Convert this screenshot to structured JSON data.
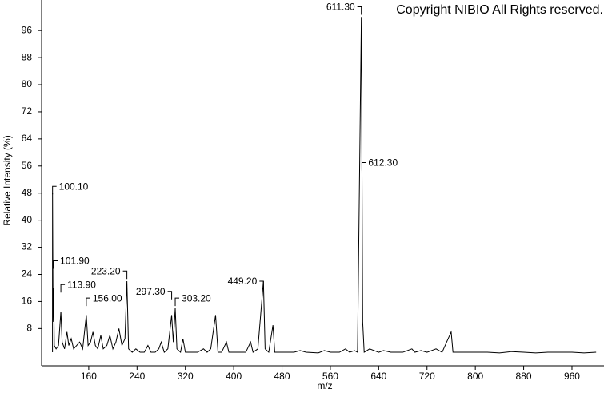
{
  "chart_data": {
    "type": "line",
    "title": "Copyright NIBIO All Rights reserved.",
    "x_label": "m/z",
    "y_label": "Relative Intensity (%)",
    "xlim": [
      82,
      1013
    ],
    "ylim": [
      -3,
      105
    ],
    "xticks": [
      160,
      240,
      320,
      400,
      480,
      560,
      640,
      720,
      800,
      880,
      960
    ],
    "yticks": [
      8,
      16,
      24,
      32,
      40,
      48,
      56,
      64,
      72,
      80,
      88,
      96
    ],
    "color": "#000000",
    "x": [
      100,
      100.1,
      101,
      101.9,
      103,
      106,
      110,
      113.9,
      116,
      120,
      124,
      127,
      131,
      135,
      140,
      145,
      150,
      156,
      159,
      163,
      167,
      171,
      175,
      180,
      184,
      190,
      195,
      200,
      205,
      210,
      215,
      220,
      223.2,
      226,
      232,
      238,
      245,
      252,
      258,
      263,
      270,
      276,
      280,
      285,
      291,
      297.3,
      300,
      303.2,
      306,
      312,
      316,
      320,
      330,
      340,
      350,
      356,
      362,
      370,
      374,
      380,
      388,
      392,
      400,
      410,
      420,
      428,
      432,
      440,
      449.2,
      452,
      458,
      465,
      468,
      480,
      500,
      510,
      520,
      540,
      550,
      560,
      575,
      585,
      592,
      600,
      605,
      611.3,
      611.8,
      612.3,
      613.5,
      616,
      625,
      640,
      648,
      660,
      680,
      695,
      700,
      710,
      720,
      735,
      745,
      760,
      763,
      780,
      800,
      820,
      840,
      860,
      880,
      900,
      920,
      940,
      960,
      980,
      1000
    ],
    "values": [
      1,
      48,
      10,
      20,
      3,
      2,
      3,
      13,
      4,
      2,
      7,
      3,
      5,
      2,
      3,
      4,
      2,
      12,
      3,
      4,
      7,
      3,
      2,
      6,
      2,
      3,
      6,
      2,
      4,
      8,
      3,
      5,
      22,
      2,
      1,
      2,
      1,
      1,
      3,
      1,
      1,
      2,
      4,
      1,
      2,
      12,
      4,
      14,
      2,
      1,
      5,
      1,
      1,
      1,
      2,
      1,
      2,
      12,
      1,
      1,
      4,
      1,
      1,
      1,
      1,
      4,
      1,
      2,
      22,
      2,
      1,
      9,
      1,
      1,
      1,
      1.5,
      1,
      0.8,
      1.5,
      1,
      1,
      2,
      1,
      1.5,
      1,
      100,
      77,
      57,
      10,
      1,
      2,
      1,
      1.5,
      1,
      1,
      2,
      1,
      1.5,
      1,
      2,
      1,
      7,
      1,
      1,
      1,
      1,
      0.8,
      1.2,
      1,
      0.8,
      1,
      1,
      1,
      0.8,
      1
    ],
    "annotations": [
      {
        "label": "100.10",
        "x": 100.1,
        "y": 50,
        "side": "right"
      },
      {
        "label": "101.90",
        "x": 101.9,
        "y": 28,
        "side": "right"
      },
      {
        "label": "113.90",
        "x": 113.9,
        "y": 21,
        "side": "right"
      },
      {
        "label": "156.00",
        "x": 156,
        "y": 17,
        "side": "right"
      },
      {
        "label": "223.20",
        "x": 223.2,
        "y": 25,
        "side": "left"
      },
      {
        "label": "297.30",
        "x": 297.3,
        "y": 19,
        "side": "left"
      },
      {
        "label": "303.20",
        "x": 303.2,
        "y": 17,
        "side": "right"
      },
      {
        "label": "449.20",
        "x": 449.2,
        "y": 22,
        "side": "left"
      },
      {
        "label": "611.30",
        "x": 611.3,
        "y": 103,
        "side": "left"
      },
      {
        "label": "612.30",
        "x": 612.3,
        "y": 57,
        "side": "right"
      }
    ]
  }
}
